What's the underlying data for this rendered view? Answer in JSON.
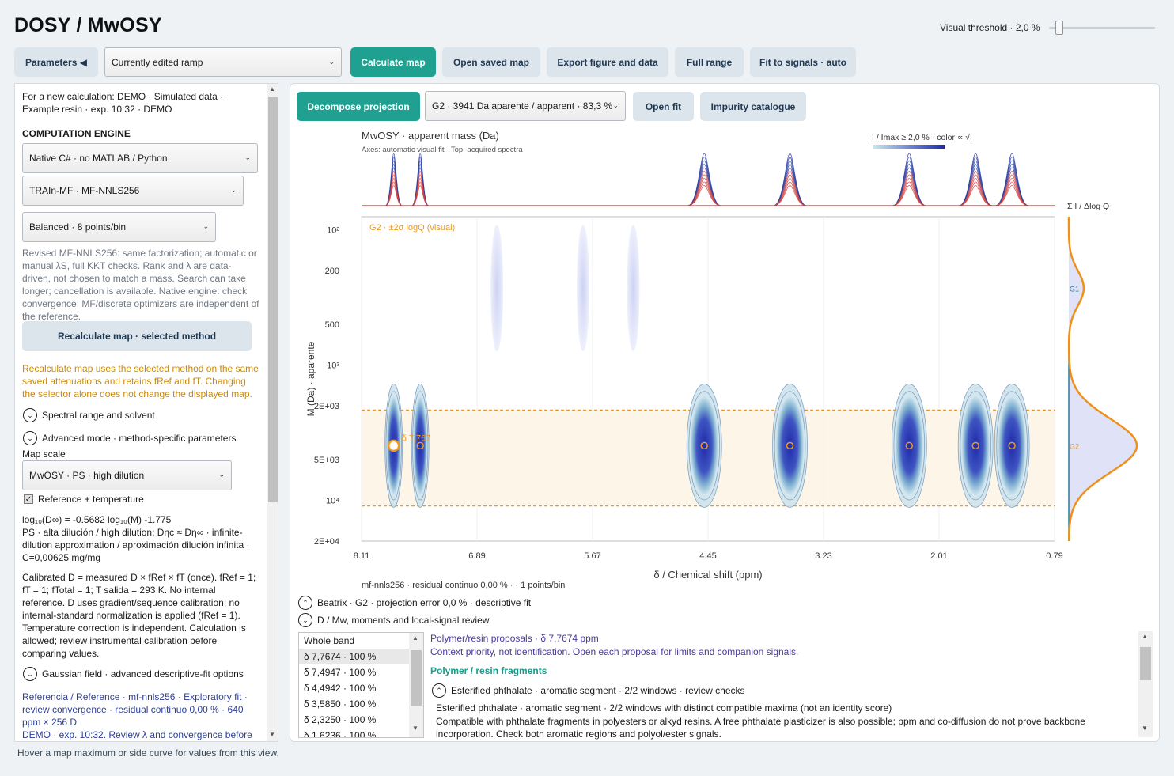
{
  "app": {
    "title": "DOSY / MwOSY"
  },
  "threshold": {
    "label": "Visual threshold · 2,0 %",
    "value_percent": 2.0
  },
  "toolbar": {
    "parameters_label": "Parameters ◀",
    "ramp_select": "Currently edited ramp",
    "calculate": "Calculate map",
    "open_saved": "Open saved map",
    "export": "Export figure and data",
    "full_range": "Full range",
    "fit_signals": "Fit to signals · auto"
  },
  "left": {
    "intro": "For a new calculation: DEMO · Simulated data · Example resin · exp. 10:32 · DEMO",
    "engine_heading": "COMPUTATION ENGINE",
    "engine_select": "Native C# · no MATLAB / Python",
    "method_select": "TRAIn-MF · MF-NNLS256",
    "balance_select": "Balanced · 8 points/bin",
    "method_note": "Revised MF-NNLS256: same factorization; automatic or manual λS, full KKT checks. Rank and λ are data-driven, not chosen to match a mass. Search can take longer; cancellation is available. Native engine: check convergence; MF/discrete optimizers are independent of the reference.",
    "recalc_button": "Recalculate map · selected method",
    "recalc_note": "Recalculate map uses the selected method on the same saved attenuations and retains fRef and fT. Changing the selector alone does not change the displayed map.",
    "section_spectral": "Spectral range and solvent",
    "section_advanced": "Advanced mode · method-specific parameters",
    "map_scale_label": "Map scale",
    "map_scale_select": "MwOSY · PS · high dilution",
    "reference_checkbox": "Reference + temperature",
    "formula": "log₁₀(D∞) = -0.5682 log₁₀(M) -1.775",
    "formula_note": "PS · alta dilución / high dilution; Dηc ≈ Dη∞ · infinite-dilution approximation / aproximación dilución infinita · C=0,00625 mg/mg",
    "calibration_note": "Calibrated D = measured D × fRef × fT (once). fRef = 1; fT = 1; fTotal = 1; T salida = 293 K. No internal reference. D uses gradient/sequence calibration; no internal-standard normalization is applied (fRef = 1). Temperature correction is independent. Calculation is allowed; review instrumental calibration before comparing values.",
    "section_gaussian": "Gaussian field · advanced descriptive-fit options",
    "reference_summary": "Referencia / Reference · mf-nnls256 · Exploratory fit · review convergence · residual continuo 0,00 % · 640 ppm × 256 D",
    "demo_line": "DEMO · exp. 10:32. Review λ and convergence before"
  },
  "right": {
    "decompose": "Decompose projection",
    "component_select": "G2 · 3941 Da aparente / apparent · 83,3 %",
    "open_fit": "Open fit",
    "impurity": "Impurity catalogue",
    "footer_stats": "mf-nnls256 · residual continuo 0,00 % · · 1 points/bin",
    "section_beatrix": "Beatrix · G2 · projection error 0,0 % · descriptive fit",
    "section_moments": "D / Mw, moments and local-signal review",
    "band_list": [
      "Whole band",
      "δ 7,7674 · 100 %",
      "δ 7,4947 · 100 %",
      "δ 4,4942 · 100 %",
      "δ 3,5850 · 100 %",
      "δ 2,3250 · 100 %",
      "δ 1,6236 · 100 %"
    ],
    "proposals_title": "Polymer/resin proposals · δ 7,7674 ppm",
    "proposals_note": "Context priority, not identification. Open each proposal for limits and companion signals.",
    "fragments_heading": "Polymer / resin fragments",
    "fragment_item": "Esterified phthalate · aromatic segment · 2/2 windows · review checks",
    "fragment_detail": "Esterified phthalate · aromatic segment · 2/2 windows with distinct compatible maxima (not an identity score)",
    "fragment_detail2": "Compatible with phthalate fragments in polyesters or alkyd resins. A free phthalate plasticizer is also possible; ppm and co-diffusion do not prove backbone incorporation. Check both aromatic regions and polyol/ester signals."
  },
  "footer": {
    "hint": "Hover a map maximum or side curve for values from this view."
  },
  "chart_data": {
    "type": "heatmap",
    "title": "MwOSY · apparent mass (Da)",
    "subtitle": "Axes: automatic visual fit · Top: acquired spectra",
    "colorbar_label": "I / Imax ≥ 2,0 % · color ∝ √I",
    "xlabel": "δ / Chemical shift (ppm)",
    "ylabel": "M (Da) · aparente",
    "side_label": "Σ I / Δlog Q",
    "band_label": "G2 · ±2σ logQ (visual)",
    "peak_label": "δ 7,767",
    "x_ticks": [
      "8.11",
      "6.89",
      "5.67",
      "4.45",
      "3.23",
      "2.01",
      "0.79"
    ],
    "xlim": [
      8.11,
      0.79
    ],
    "y_ticks": [
      "10²",
      "200",
      "500",
      "10³",
      "2E+03",
      "5E+03",
      "10⁴",
      "2E+04"
    ],
    "y_tick_values": [
      100,
      200,
      500,
      1000,
      2000,
      5000,
      10000,
      20000
    ],
    "ylim": [
      80,
      20000
    ],
    "y_scale": "log",
    "band_M": [
      2150,
      11000
    ],
    "component_markers": [
      {
        "ppm": 7.77,
        "M": 3941
      },
      {
        "ppm": 7.49,
        "M": 3941
      },
      {
        "ppm": 4.49,
        "M": 3941
      },
      {
        "ppm": 3.585,
        "M": 3941
      },
      {
        "ppm": 2.325,
        "M": 3941
      },
      {
        "ppm": 1.624,
        "M": 3941
      },
      {
        "ppm": 1.24,
        "M": 3941
      }
    ],
    "peaks": [
      {
        "ppm": 7.77,
        "M": 3941,
        "intensity": 1.0
      },
      {
        "ppm": 7.49,
        "M": 3941,
        "intensity": 1.0
      },
      {
        "ppm": 6.68,
        "M": 270,
        "intensity": 0.15
      },
      {
        "ppm": 5.77,
        "M": 270,
        "intensity": 0.15
      },
      {
        "ppm": 5.24,
        "M": 270,
        "intensity": 0.15
      },
      {
        "ppm": 4.49,
        "M": 3941,
        "intensity": 1.0
      },
      {
        "ppm": 3.585,
        "M": 3941,
        "intensity": 1.0
      },
      {
        "ppm": 2.325,
        "M": 3941,
        "intensity": 1.0
      },
      {
        "ppm": 1.624,
        "M": 3941,
        "intensity": 1.0
      },
      {
        "ppm": 1.24,
        "M": 3941,
        "intensity": 1.0
      }
    ],
    "side_components": [
      {
        "name": "G1",
        "M": 270
      },
      {
        "name": "G2",
        "M": 3941
      }
    ],
    "colors": {
      "low": "#c9e6ee",
      "high": "#1f2aa8",
      "band": "#e89a2a",
      "spectrum_top": "#2a3fa0",
      "spectrum_bottom": "#d04040"
    }
  }
}
